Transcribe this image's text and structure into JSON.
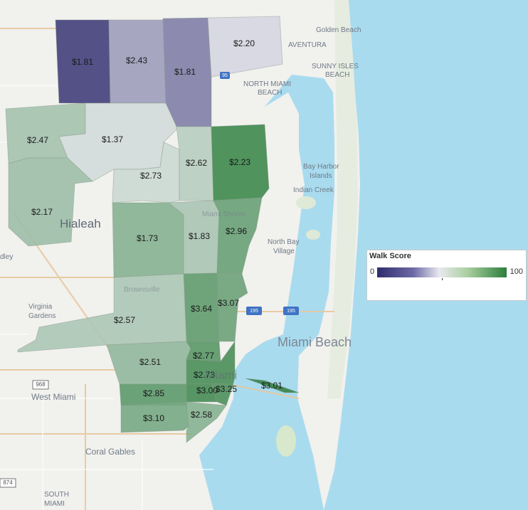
{
  "legend": {
    "title": "Walk Score",
    "min": "0",
    "max": "100",
    "tick_fraction": 0.5
  },
  "colors": {
    "water": "#a9dbef",
    "land": "#f1f1ee",
    "walk_low": "#2f2c6e",
    "walk_mid": "#e9e9ef",
    "walk_high": "#2b7d3b"
  },
  "zones": [
    {
      "label": "$1.81",
      "walk_score": 5
    },
    {
      "label": "$2.43",
      "walk_score": 30
    },
    {
      "label": "$1.81",
      "walk_score": 22
    },
    {
      "label": "$2.20",
      "walk_score": 45
    },
    {
      "label": "$2.47",
      "walk_score": 68
    },
    {
      "label": "$1.37",
      "walk_score": 56
    },
    {
      "label": "$2.62",
      "walk_score": 63
    },
    {
      "label": "$2.23",
      "walk_score": 95
    },
    {
      "label": "$2.73",
      "walk_score": 58
    },
    {
      "label": "$2.17",
      "walk_score": 70
    },
    {
      "label": "$1.73",
      "walk_score": 76
    },
    {
      "label": "$1.83",
      "walk_score": 67
    },
    {
      "label": "$2.96",
      "walk_score": 84
    },
    {
      "label": "$3.64",
      "walk_score": 86
    },
    {
      "label": "$3.07",
      "walk_score": 83
    },
    {
      "label": "$2.57",
      "walk_score": 66
    },
    {
      "label": "$2.51",
      "walk_score": 73
    },
    {
      "label": "$2.77",
      "walk_score": 88
    },
    {
      "label": "$2.73",
      "walk_score": 92
    },
    {
      "label": "$2.85",
      "walk_score": 87
    },
    {
      "label": "$3.00",
      "walk_score": 93
    },
    {
      "label": "$3.25",
      "walk_score": 91
    },
    {
      "label": "$3.01",
      "walk_score": 97
    },
    {
      "label": "$3.10",
      "walk_score": 80
    },
    {
      "label": "$2.58",
      "walk_score": 76
    }
  ],
  "places": {
    "golden_beach": "Golden Beach",
    "aventura": "AVENTURA",
    "sunny_isles_1": "SUNNY ISLES",
    "sunny_isles_2": "BEACH",
    "north_miami_1": "NORTH MIAMI",
    "north_miami_2": "BEACH",
    "bay_harbor_1": "Bay Harbor",
    "bay_harbor_2": "Islands",
    "indian_creek": "Indian Creek",
    "north_bay_1": "North Bay",
    "north_bay_2": "Village",
    "hialeah": "Hialeah",
    "dley": "dley",
    "virginia_1": "Virginia",
    "virginia_2": "Gardens",
    "miami_beach": "Miami Beach",
    "west_miami": "West Miami",
    "coral_gables": "Coral Gables",
    "south_1": "SOUTH",
    "south_2": "MIAMI",
    "miami_faint": "Miami",
    "miami_shores": "Miami Shores",
    "brownsville": "Brownsville"
  },
  "roads": {
    "i95_a": "95",
    "i195_a": "195",
    "i195_b": "195",
    "r968": "968",
    "r874": "874"
  }
}
